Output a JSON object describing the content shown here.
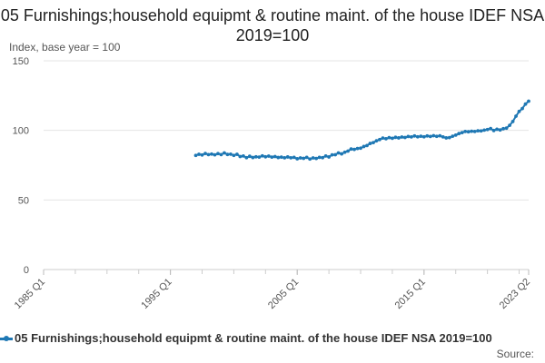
{
  "chart_data": {
    "type": "line",
    "title": "05 Furnishings;household equipmt & routine maint. of the house IDEF NSA 2019=100",
    "ylabel": "Index, base year = 100",
    "xlabel": "",
    "ylim": [
      0,
      150
    ],
    "yticks": [
      0,
      50,
      100,
      150
    ],
    "x_range": [
      "1985 Q1",
      "2023 Q2"
    ],
    "xticks": [
      "1985 Q1",
      "1995 Q1",
      "2005 Q1",
      "2015 Q1",
      "2023 Q2"
    ],
    "grid": "horizontal",
    "legend_position": "bottom-left",
    "series": [
      {
        "name": "05 Furnishings;household equipmt & routine maint. of the house IDEF NSA 2019=100",
        "color": "#1f78b4",
        "x": [
          "1997 Q1",
          "1997 Q2",
          "1997 Q3",
          "1997 Q4",
          "1998 Q1",
          "1998 Q2",
          "1998 Q3",
          "1998 Q4",
          "1999 Q1",
          "1999 Q2",
          "1999 Q3",
          "1999 Q4",
          "2000 Q1",
          "2000 Q2",
          "2000 Q3",
          "2000 Q4",
          "2001 Q1",
          "2001 Q2",
          "2001 Q3",
          "2001 Q4",
          "2002 Q1",
          "2002 Q2",
          "2002 Q3",
          "2002 Q4",
          "2003 Q1",
          "2003 Q2",
          "2003 Q3",
          "2003 Q4",
          "2004 Q1",
          "2004 Q2",
          "2004 Q3",
          "2004 Q4",
          "2005 Q1",
          "2005 Q2",
          "2005 Q3",
          "2005 Q4",
          "2006 Q1",
          "2006 Q2",
          "2006 Q3",
          "2006 Q4",
          "2007 Q1",
          "2007 Q2",
          "2007 Q3",
          "2007 Q4",
          "2008 Q1",
          "2008 Q2",
          "2008 Q3",
          "2008 Q4",
          "2009 Q1",
          "2009 Q2",
          "2009 Q3",
          "2009 Q4",
          "2010 Q1",
          "2010 Q2",
          "2010 Q3",
          "2010 Q4",
          "2011 Q1",
          "2011 Q2",
          "2011 Q3",
          "2011 Q4",
          "2012 Q1",
          "2012 Q2",
          "2012 Q3",
          "2012 Q4",
          "2013 Q1",
          "2013 Q2",
          "2013 Q3",
          "2013 Q4",
          "2014 Q1",
          "2014 Q2",
          "2014 Q3",
          "2014 Q4",
          "2015 Q1",
          "2015 Q2",
          "2015 Q3",
          "2015 Q4",
          "2016 Q1",
          "2016 Q2",
          "2016 Q3",
          "2016 Q4",
          "2017 Q1",
          "2017 Q2",
          "2017 Q3",
          "2017 Q4",
          "2018 Q1",
          "2018 Q2",
          "2018 Q3",
          "2018 Q4",
          "2019 Q1",
          "2019 Q2",
          "2019 Q3",
          "2019 Q4",
          "2020 Q1",
          "2020 Q2",
          "2020 Q3",
          "2020 Q4",
          "2021 Q1",
          "2021 Q2",
          "2021 Q3",
          "2021 Q4",
          "2022 Q1",
          "2022 Q2",
          "2022 Q3",
          "2022 Q4",
          "2023 Q1",
          "2023 Q2"
        ],
        "values": [
          82.0,
          82.8,
          82.3,
          83.4,
          82.6,
          83.0,
          82.4,
          83.3,
          82.6,
          83.8,
          82.7,
          82.9,
          82.0,
          82.8,
          81.2,
          81.6,
          80.4,
          81.4,
          80.5,
          81.0,
          80.8,
          81.7,
          81.0,
          81.5,
          80.8,
          81.2,
          80.5,
          80.8,
          80.3,
          80.9,
          80.3,
          80.6,
          79.6,
          80.2,
          79.9,
          80.6,
          79.4,
          80.2,
          79.8,
          80.6,
          80.4,
          81.6,
          80.9,
          82.4,
          82.5,
          83.8,
          83.1,
          84.3,
          85.1,
          86.6,
          86.3,
          87.0,
          87.2,
          88.4,
          89.1,
          90.6,
          91.2,
          92.5,
          93.4,
          94.5,
          94.0,
          94.8,
          94.3,
          95.0,
          94.6,
          95.2,
          94.9,
          95.6,
          95.3,
          96.0,
          95.4,
          95.8,
          95.4,
          96.0,
          95.6,
          96.2,
          95.7,
          96.1,
          95.3,
          94.6,
          94.8,
          95.8,
          96.6,
          97.7,
          98.4,
          99.2,
          99.0,
          99.4,
          99.2,
          99.7,
          99.6,
          100.2,
          100.6,
          101.3,
          99.9,
          100.8,
          100.3,
          101.2,
          101.6,
          103.6,
          106.4,
          110.2,
          113.6,
          115.7,
          118.9,
          121.0
        ]
      }
    ]
  },
  "legend": {
    "label": "05 Furnishings;household equipmt & routine maint. of the house IDEF NSA 2019=100"
  },
  "source": {
    "label": "Source:"
  }
}
